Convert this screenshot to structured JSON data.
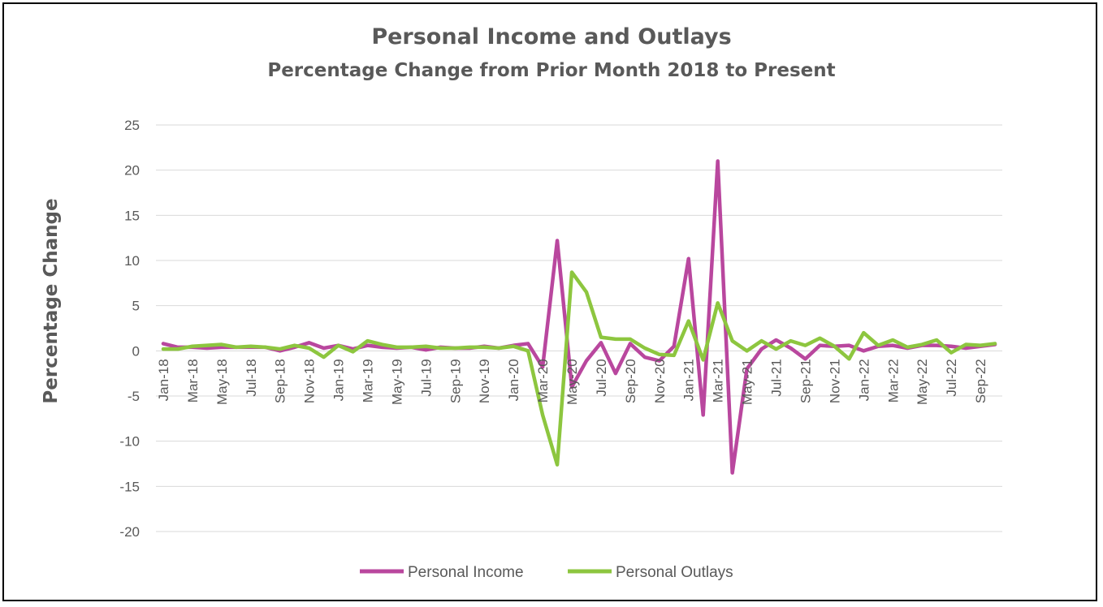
{
  "chart_data": {
    "type": "line",
    "title": "Personal Income and Outlays",
    "subtitle": "Percentage Change from Prior Month 2018 to Present",
    "xlabel": "",
    "ylabel": "Percentage Change",
    "ylim": [
      -20,
      25
    ],
    "yticks": [
      -20,
      -15,
      -10,
      -5,
      0,
      5,
      10,
      15,
      20,
      25
    ],
    "grid": true,
    "legend_position": "bottom",
    "x": [
      "Jan-18",
      "Feb-18",
      "Mar-18",
      "Apr-18",
      "May-18",
      "Jun-18",
      "Jul-18",
      "Aug-18",
      "Sep-18",
      "Oct-18",
      "Nov-18",
      "Dec-18",
      "Jan-19",
      "Feb-19",
      "Mar-19",
      "Apr-19",
      "May-19",
      "Jun-19",
      "Jul-19",
      "Aug-19",
      "Sep-19",
      "Oct-19",
      "Nov-19",
      "Dec-19",
      "Jan-20",
      "Feb-20",
      "Mar-20",
      "Apr-20",
      "May-20",
      "Jun-20",
      "Jul-20",
      "Aug-20",
      "Sep-20",
      "Oct-20",
      "Nov-20",
      "Dec-20",
      "Jan-21",
      "Feb-21",
      "Mar-21",
      "Apr-21",
      "May-21",
      "Jun-21",
      "Jul-21",
      "Aug-21",
      "Sep-21",
      "Oct-21",
      "Nov-21",
      "Dec-21",
      "Jan-22",
      "Feb-22",
      "Mar-22",
      "Apr-22",
      "May-22",
      "Jun-22",
      "Jul-22",
      "Aug-22",
      "Sep-22",
      "Oct-22"
    ],
    "x_tick_labels": [
      "Jan-18",
      "Mar-18",
      "May-18",
      "Jul-18",
      "Sep-18",
      "Nov-18",
      "Jan-19",
      "Mar-19",
      "May-19",
      "Jul-19",
      "Sep-19",
      "Nov-19",
      "Jan-20",
      "Mar-20",
      "May-20",
      "Jul-20",
      "Sep-20",
      "Nov-20",
      "Jan-21",
      "Mar-21",
      "May-21",
      "Jul-21",
      "Sep-21",
      "Nov-21",
      "Jan-22",
      "Mar-22",
      "May-22",
      "Jul-22",
      "Sep-22"
    ],
    "series": [
      {
        "name": "Personal Income",
        "color": "#B9479E",
        "values": [
          0.8,
          0.4,
          0.4,
          0.3,
          0.4,
          0.4,
          0.4,
          0.4,
          0.0,
          0.4,
          0.9,
          0.3,
          0.6,
          0.2,
          0.6,
          0.4,
          0.3,
          0.4,
          0.1,
          0.4,
          0.3,
          0.3,
          0.5,
          0.3,
          0.6,
          0.8,
          -1.8,
          12.2,
          -4.0,
          -1.1,
          0.9,
          -2.5,
          0.8,
          -0.7,
          -1.1,
          0.5,
          10.2,
          -7.1,
          21.0,
          -13.5,
          -2.0,
          0.2,
          1.2,
          0.3,
          -0.9,
          0.6,
          0.5,
          0.6,
          0.0,
          0.5,
          0.6,
          0.3,
          0.6,
          0.6,
          0.5,
          0.3,
          0.5,
          0.7
        ]
      },
      {
        "name": "Personal Outlays",
        "color": "#8DC63F",
        "values": [
          0.2,
          0.2,
          0.5,
          0.6,
          0.7,
          0.4,
          0.5,
          0.4,
          0.2,
          0.6,
          0.3,
          -0.7,
          0.6,
          -0.1,
          1.1,
          0.7,
          0.4,
          0.4,
          0.5,
          0.3,
          0.3,
          0.4,
          0.4,
          0.3,
          0.5,
          0.0,
          -7.1,
          -12.6,
          8.7,
          6.5,
          1.5,
          1.3,
          1.3,
          0.3,
          -0.4,
          -0.5,
          3.3,
          -1.0,
          5.3,
          1.1,
          0.0,
          1.1,
          0.2,
          1.1,
          0.6,
          1.4,
          0.5,
          -0.9,
          2.0,
          0.6,
          1.2,
          0.4,
          0.7,
          1.2,
          -0.2,
          0.7,
          0.6,
          0.8
        ]
      }
    ]
  }
}
